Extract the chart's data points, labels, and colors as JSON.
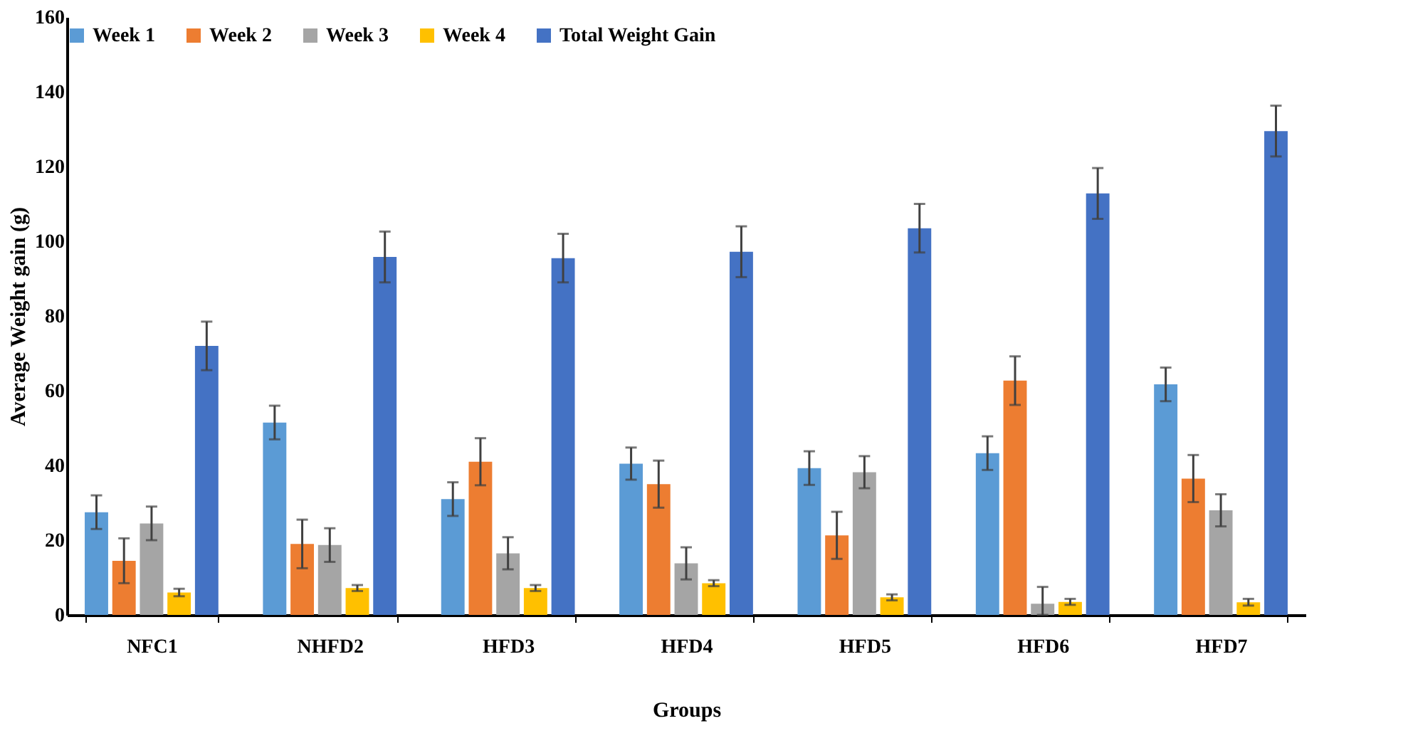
{
  "chart_data": {
    "type": "bar",
    "xlabel": "Groups",
    "ylabel": "Average Weight gain (g)",
    "categories": [
      "NFC1",
      "NHFD2",
      "HFD3",
      "HFD4",
      "HFD5",
      "HFD6",
      "HFD7"
    ],
    "series": [
      {
        "name": "Week 1",
        "color": "#5b9bd5",
        "values": [
          27.5,
          51.5,
          31,
          40.5,
          39.3,
          43.3,
          61.7
        ],
        "errors": [
          4.5,
          4.5,
          4.5,
          4.3,
          4.5,
          4.5,
          4.5
        ]
      },
      {
        "name": "Week 2",
        "color": "#ed7d31",
        "values": [
          14.5,
          19,
          41,
          35,
          21.3,
          62.7,
          36.5
        ],
        "errors": [
          6,
          6.5,
          6.3,
          6.3,
          6.3,
          6.5,
          6.3
        ]
      },
      {
        "name": "Week 3",
        "color": "#a5a5a5",
        "values": [
          24.5,
          18.7,
          16.5,
          13.8,
          38.2,
          3,
          28
        ],
        "errors": [
          4.5,
          4.5,
          4.3,
          4.3,
          4.3,
          [
            0,
            7.5
          ],
          4.3
        ]
      },
      {
        "name": "Week 4",
        "color": "#ffc000",
        "values": [
          6,
          7.2,
          7.2,
          8.5,
          4.7,
          3.5,
          3.4
        ],
        "errors": [
          1,
          0.8,
          0.8,
          0.8,
          0.8,
          0.8,
          0.9
        ]
      },
      {
        "name": "Total Weight Gain",
        "color": "#4472c4",
        "values": [
          72,
          95.8,
          95.5,
          97.2,
          103.5,
          112.8,
          129.5
        ],
        "errors": [
          6.5,
          6.8,
          6.5,
          6.8,
          6.5,
          6.8,
          6.8
        ]
      }
    ],
    "ylim": [
      0,
      160
    ],
    "yticks": [
      0,
      20,
      40,
      60,
      80,
      100,
      120,
      140,
      160
    ],
    "grid": false,
    "legend": "top"
  }
}
